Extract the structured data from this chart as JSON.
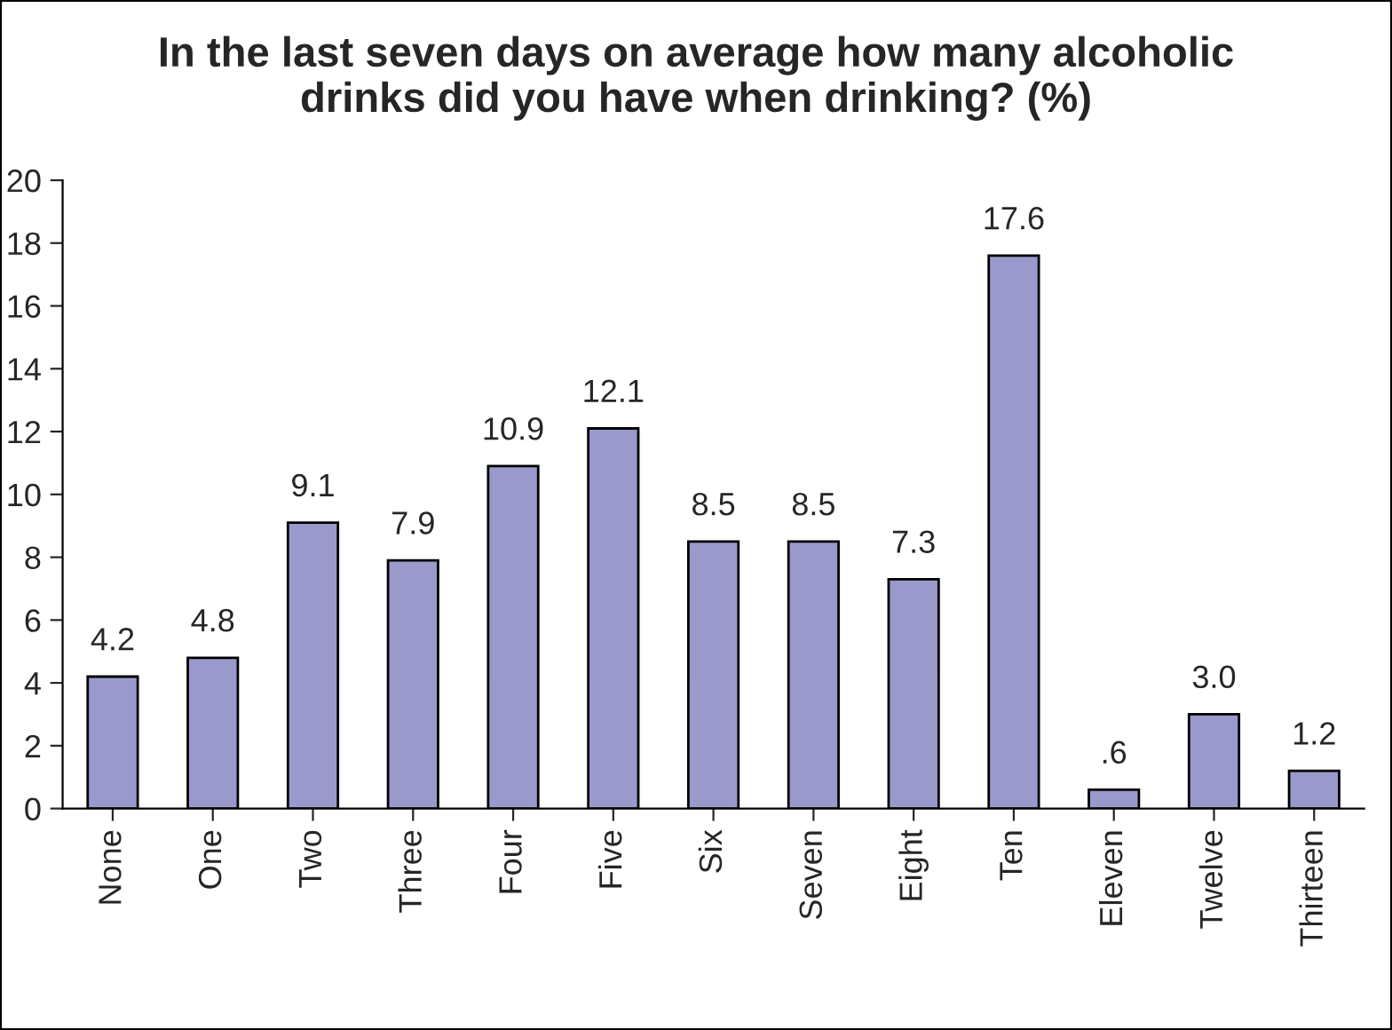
{
  "chart_data": {
    "type": "bar",
    "title": "In the last seven days on average how many alcoholic\ndrinks did you have when drinking? (%)",
    "categories": [
      "None",
      "One",
      "Two",
      "Three",
      "Four",
      "Five",
      "Six",
      "Seven",
      "Eight",
      "Ten",
      "Eleven",
      "Twelve",
      "Thirteen"
    ],
    "values": [
      4.2,
      4.8,
      9.1,
      7.9,
      10.9,
      12.1,
      8.5,
      8.5,
      7.3,
      17.6,
      0.6,
      3.0,
      1.2
    ],
    "value_labels": [
      "4.2",
      "4.8",
      "9.1",
      "7.9",
      "10.9",
      "12.1",
      "8.5",
      "8.5",
      "7.3",
      "17.6",
      ".6",
      "3.0",
      "1.2"
    ],
    "color": "#9999cc",
    "ylim": [
      0,
      20
    ],
    "yticks": [
      0,
      2,
      4,
      6,
      8,
      10,
      12,
      14,
      16,
      18,
      20
    ],
    "grid": false,
    "legend": false
  }
}
